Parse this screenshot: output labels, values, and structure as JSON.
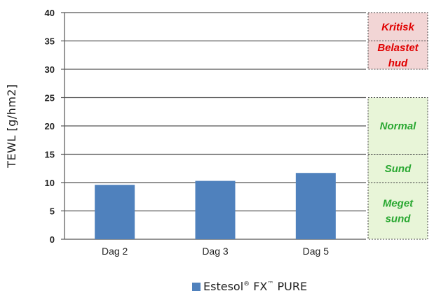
{
  "chart_data": {
    "type": "bar",
    "ylabel": "TEWL [g/hm2]",
    "xlabel": "",
    "ylim": [
      0,
      40
    ],
    "yticks": [
      0,
      5,
      10,
      15,
      20,
      25,
      30,
      35,
      40
    ],
    "grid": true,
    "categories": [
      "Dag 2",
      "Dag 3",
      "Dag 5"
    ],
    "series": [
      {
        "name": "Estesol® FX™ PURE",
        "values": [
          9.6,
          10.3,
          11.7
        ],
        "color": "#4f81bd"
      }
    ],
    "legend_placement": "bottom",
    "zones": [
      {
        "label": "Kritisk",
        "from": 35,
        "to": 40,
        "color": "#e00000",
        "fill": "#f2d5d5"
      },
      {
        "label": "Belastet hud",
        "from": 30,
        "to": 35,
        "color": "#e00000",
        "fill": "#f2d5d5"
      },
      {
        "label": "Normal",
        "from": 15,
        "to": 25,
        "color": "#2aa832",
        "fill": "#e8f5d8"
      },
      {
        "label": "Sund",
        "from": 10,
        "to": 15,
        "color": "#2aa832",
        "fill": "#e8f5d8"
      },
      {
        "label": "Meget sund",
        "from": 0,
        "to": 10,
        "color": "#2aa832",
        "fill": "#e8f5d8"
      }
    ]
  },
  "legend": {
    "text_main": "Estesol",
    "sup1": "®",
    "text_mid": " FX",
    "sup2": "™",
    "text_end": " PURE"
  }
}
